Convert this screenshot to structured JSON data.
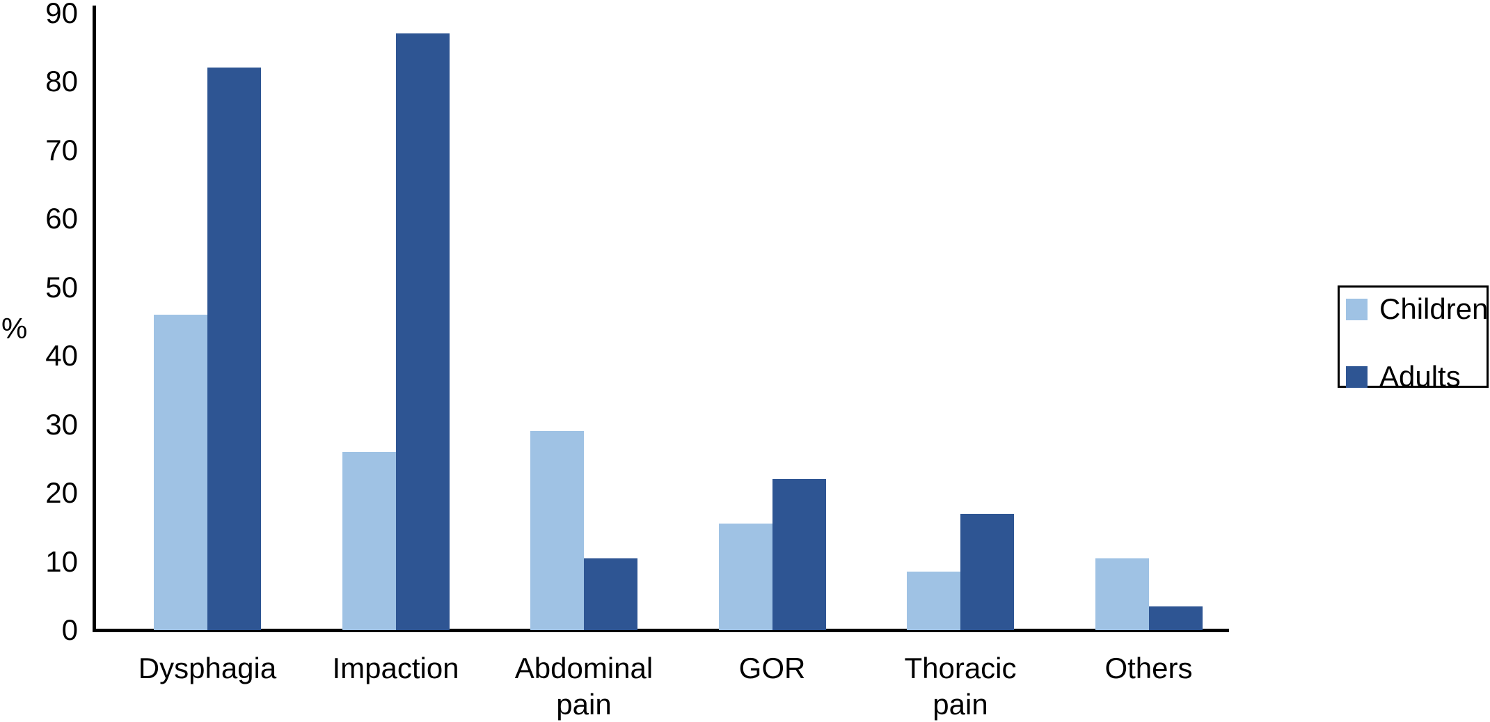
{
  "chart_data": {
    "type": "bar",
    "categories": [
      "Dysphagia",
      "Impaction",
      "Abdominal\npain",
      "GOR",
      "Thoracic\npain",
      "Others"
    ],
    "series": [
      {
        "name": "Children",
        "color": "#9fc2e4",
        "values": [
          46,
          26,
          29,
          15.5,
          8.5,
          10.5
        ]
      },
      {
        "name": "Adults",
        "color": "#2e5593",
        "values": [
          82,
          87,
          10.5,
          22,
          17,
          3.5
        ]
      }
    ],
    "title": "",
    "xlabel": "",
    "ylabel": "%",
    "ylim": [
      0,
      90
    ],
    "yticks": [
      0,
      10,
      20,
      30,
      40,
      50,
      60,
      70,
      80,
      90
    ],
    "grid": false,
    "legend_position": "right",
    "axis_color": "#000000",
    "text_color": "#000000"
  }
}
